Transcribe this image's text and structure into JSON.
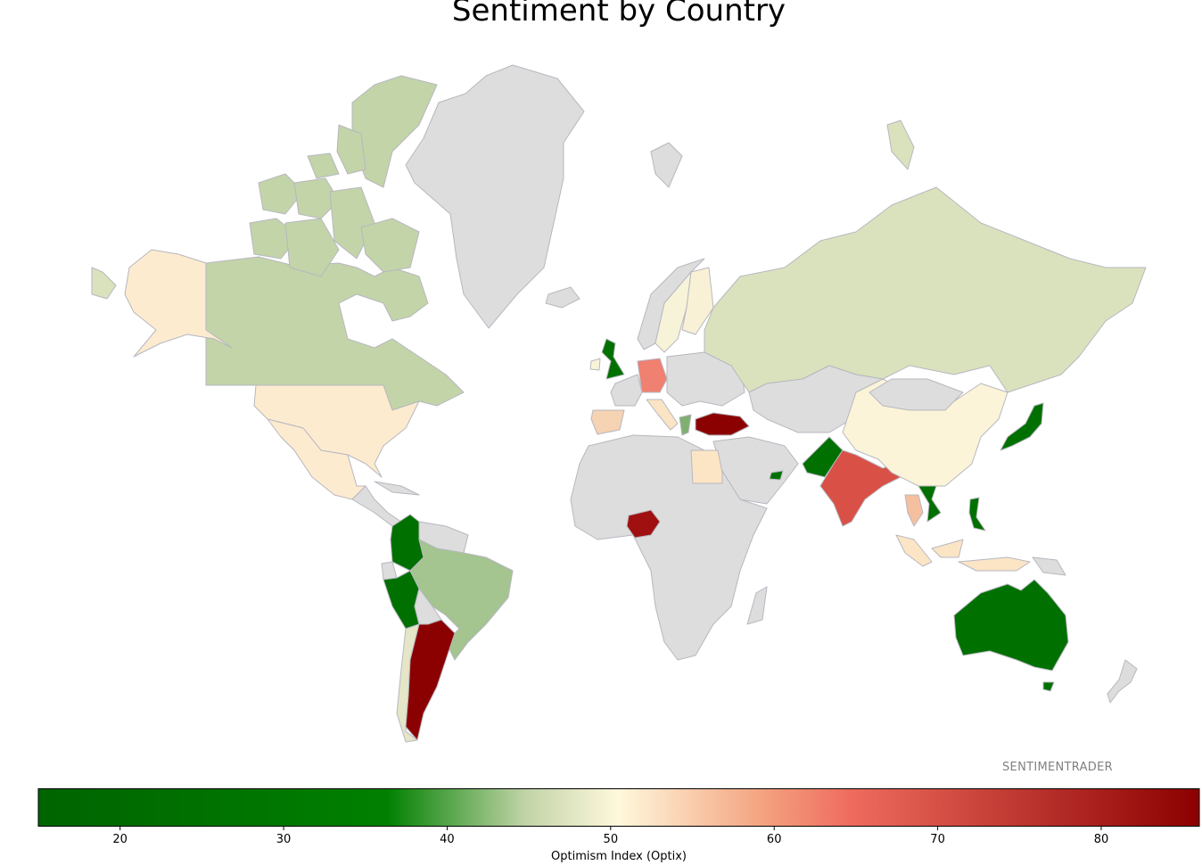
{
  "map": {
    "title": "Sentiment by Country",
    "watermark": "SENTIMENTRADER",
    "colorbar": {
      "label": "Optimism Index (Optix)",
      "min": 15,
      "max": 86,
      "ticks": [
        20,
        30,
        40,
        50,
        60,
        70,
        80
      ],
      "colors": [
        "#006400",
        "#008000",
        "#c2d4a8",
        "#fff8dc",
        "#f4a582",
        "#ef6b5e",
        "#8b0000"
      ]
    },
    "no_data_color": "#dddddd",
    "countries": [
      {
        "name": "Canada",
        "optix": 42
      },
      {
        "name": "United States",
        "optix": 52
      },
      {
        "name": "Mexico",
        "optix": 52
      },
      {
        "name": "Colombia",
        "optix": 30
      },
      {
        "name": "Peru",
        "optix": 30
      },
      {
        "name": "Brazil",
        "optix": 41
      },
      {
        "name": "Chile",
        "optix": 46
      },
      {
        "name": "Argentina",
        "optix": 85
      },
      {
        "name": "United Kingdom",
        "optix": 30
      },
      {
        "name": "Spain",
        "optix": 56
      },
      {
        "name": "Germany",
        "optix": 65
      },
      {
        "name": "Italy",
        "optix": 57
      },
      {
        "name": "Greece",
        "optix": 39
      },
      {
        "name": "Sweden",
        "optix": 49
      },
      {
        "name": "Finland",
        "optix": 50
      },
      {
        "name": "Russia",
        "optix": 46
      },
      {
        "name": "Turkey",
        "optix": 85
      },
      {
        "name": "Egypt",
        "optix": 52
      },
      {
        "name": "Nigeria",
        "optix": 80
      },
      {
        "name": "Pakistan",
        "optix": 30
      },
      {
        "name": "India",
        "optix": 68
      },
      {
        "name": "China",
        "optix": 50
      },
      {
        "name": "Japan",
        "optix": 30
      },
      {
        "name": "Vietnam",
        "optix": 30
      },
      {
        "name": "Thailand",
        "optix": 58
      },
      {
        "name": "Philippines",
        "optix": 30
      },
      {
        "name": "Indonesia",
        "optix": 51
      },
      {
        "name": "Australia",
        "optix": 30
      },
      {
        "name": "United Arab Emirates",
        "optix": 30
      }
    ]
  }
}
